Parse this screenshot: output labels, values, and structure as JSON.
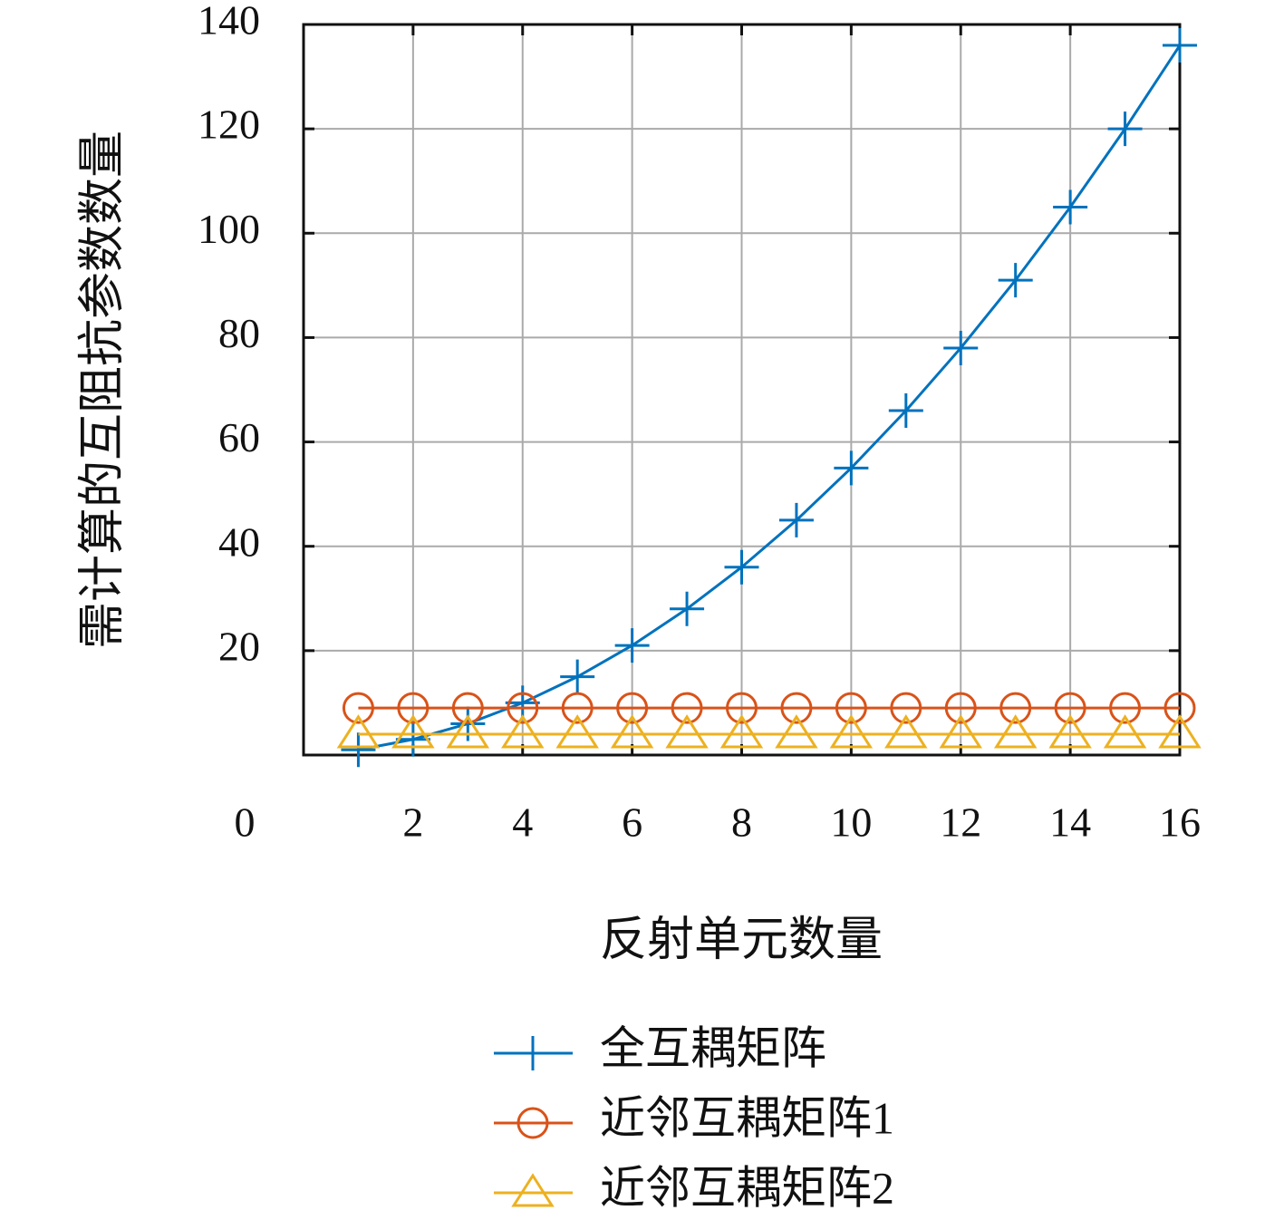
{
  "chart_data": {
    "type": "line",
    "x_label": "反射单元数量",
    "y_label": "需计算的互阻抗参数数量",
    "x": [
      1,
      2,
      3,
      4,
      5,
      6,
      7,
      8,
      9,
      10,
      11,
      12,
      13,
      14,
      15,
      16
    ],
    "series": [
      {
        "name": "全互耦矩阵",
        "color": "#0072bd",
        "marker": "plus",
        "values": [
          1,
          3,
          6,
          10,
          15,
          21,
          28,
          36,
          45,
          55,
          66,
          78,
          91,
          105,
          120,
          136
        ]
      },
      {
        "name": "近邻互耦矩阵1",
        "color": "#d95319",
        "marker": "circle",
        "values": [
          9,
          9,
          9,
          9,
          9,
          9,
          9,
          9,
          9,
          9,
          9,
          9,
          9,
          9,
          9,
          9
        ]
      },
      {
        "name": "近邻互耦矩阵2",
        "color": "#edb120",
        "marker": "triangle",
        "values": [
          4,
          4,
          4,
          4,
          4,
          4,
          4,
          4,
          4,
          4,
          4,
          4,
          4,
          4,
          4,
          4
        ]
      }
    ],
    "xlim": [
      0,
      16
    ],
    "xticks": [
      0,
      2,
      4,
      6,
      8,
      10,
      12,
      14,
      16
    ],
    "ylim": [
      0,
      140
    ],
    "yticks": [
      20,
      40,
      60,
      80,
      100,
      120,
      140
    ],
    "grid": true,
    "legend": "bottom"
  }
}
